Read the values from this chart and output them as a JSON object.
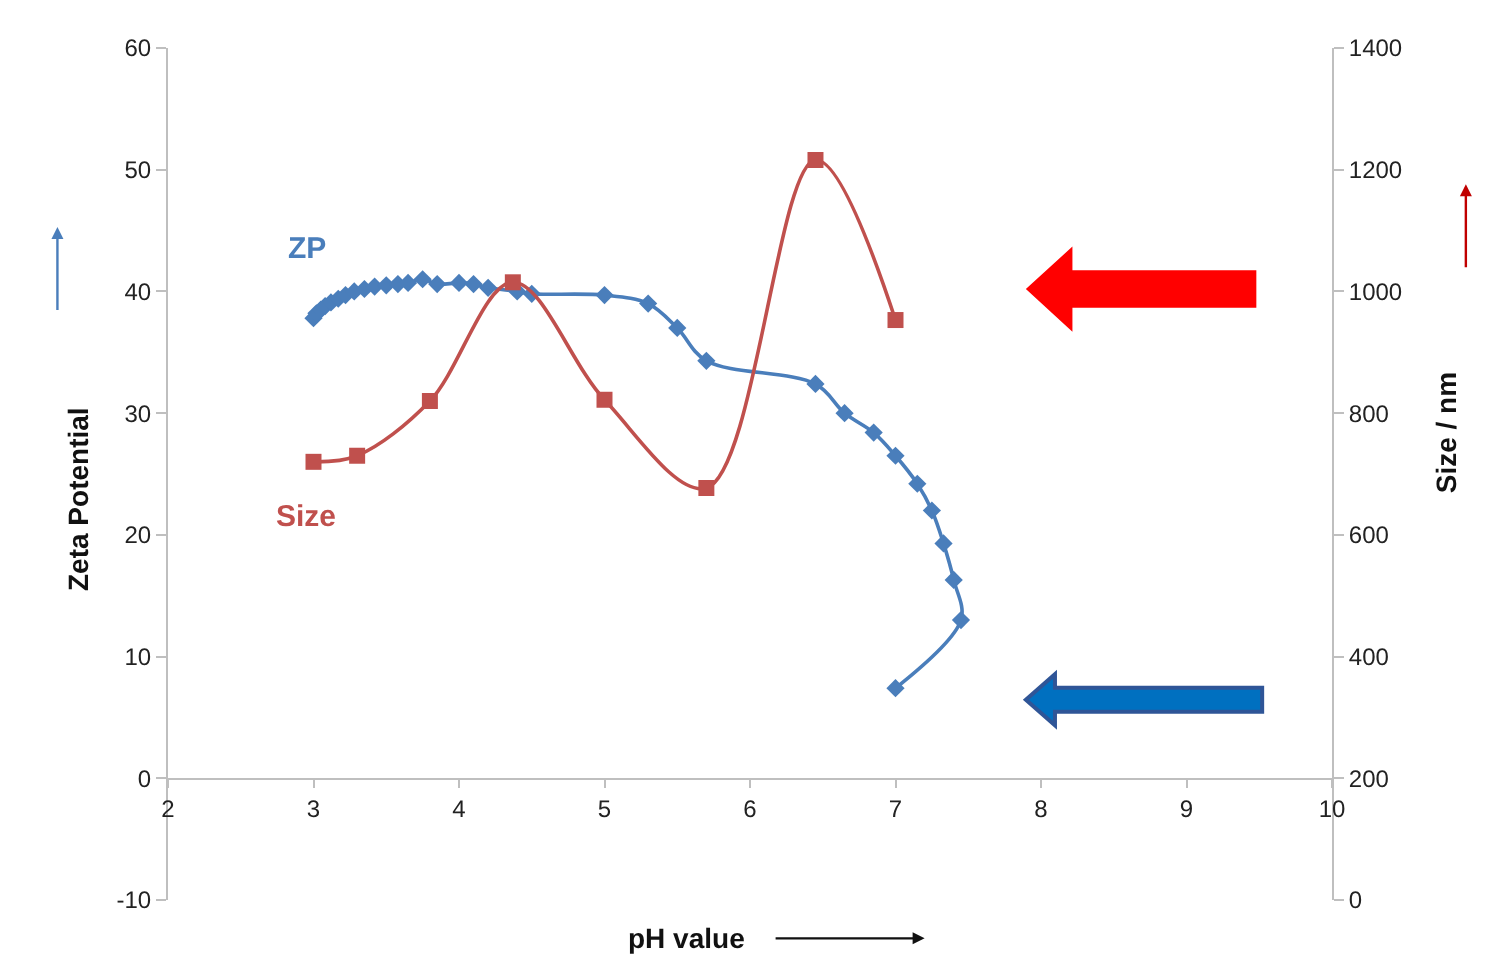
{
  "chart_data": {
    "type": "line",
    "xlabel": "pH value",
    "ylabel": "Zeta Potential",
    "y2label": "Size / nm",
    "xlim": [
      2,
      10
    ],
    "xticks": [
      2,
      3,
      4,
      5,
      6,
      7,
      8,
      9,
      10
    ],
    "ylim": [
      -10,
      60
    ],
    "yticks": [
      -10,
      0,
      10,
      20,
      30,
      40,
      50,
      60
    ],
    "y2lim": [
      0,
      1400
    ],
    "y2ticks": [
      0,
      200,
      400,
      600,
      800,
      1000,
      1200,
      1400
    ],
    "legend": false,
    "line_style": "solid",
    "series": [
      {
        "name": "ZP",
        "color": "#4a7ebb",
        "marker": "diamond",
        "x": [
          3.0,
          3.02,
          3.05,
          3.08,
          3.12,
          3.17,
          3.22,
          3.28,
          3.35,
          3.42,
          3.5,
          3.58,
          3.65,
          3.75,
          3.85,
          4.0,
          4.1,
          4.2,
          4.4,
          4.5,
          5.0,
          5.3,
          5.5,
          5.7,
          6.45,
          6.65,
          6.85,
          7.0,
          7.15,
          7.25,
          7.33,
          7.4,
          7.45,
          7.0
        ],
        "values": [
          37.8,
          38.2,
          38.5,
          38.8,
          39.1,
          39.4,
          39.7,
          40.0,
          40.2,
          40.4,
          40.5,
          40.6,
          40.7,
          41.0,
          40.6,
          40.7,
          40.6,
          40.3,
          40.0,
          39.8,
          39.7,
          39.0,
          37.0,
          34.3,
          32.4,
          30.0,
          28.4,
          26.5,
          24.2,
          22.0,
          19.3,
          16.3,
          13.0,
          7.4
        ]
      },
      {
        "name": "Size",
        "color": "#c0504d",
        "marker": "square",
        "axis": "y2",
        "x": [
          3.0,
          3.3,
          3.8,
          4.37,
          5.0,
          5.7,
          6.45,
          7.0
        ],
        "values": [
          720,
          730,
          820,
          1015,
          822,
          677,
          1216,
          953
        ]
      }
    ]
  }
}
